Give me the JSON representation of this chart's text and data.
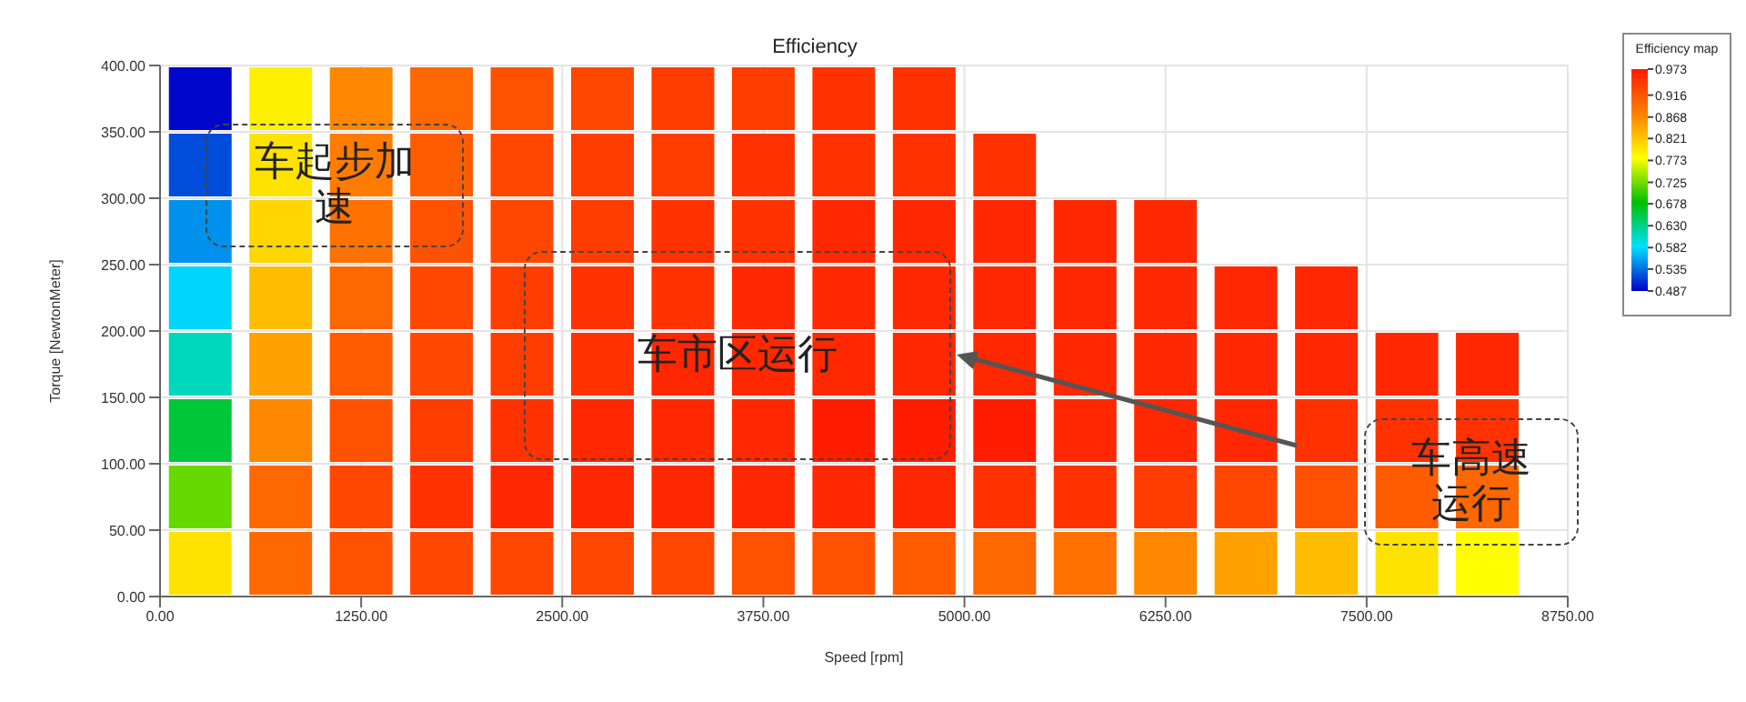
{
  "chart_data": {
    "type": "scatter",
    "title": "Efficiency",
    "xlabel": "Speed [rpm]",
    "ylabel": "Torque [NewtonMeter]",
    "clabel": "Efficiency map",
    "xlim": [
      0,
      8750
    ],
    "ylim": [
      0,
      400
    ],
    "xticks": [
      {
        "value": 0,
        "label": "0.00"
      },
      {
        "value": 1250,
        "label": "1250.00"
      },
      {
        "value": 2500,
        "label": "2500.00"
      },
      {
        "value": 3750,
        "label": "3750.00"
      },
      {
        "value": 5000,
        "label": "5000.00"
      },
      {
        "value": 6250,
        "label": "6250.00"
      },
      {
        "value": 7500,
        "label": "7500.00"
      },
      {
        "value": 8750,
        "label": "8750.00"
      }
    ],
    "yticks": [
      {
        "value": 0,
        "label": "0.00"
      },
      {
        "value": 50,
        "label": "50.00"
      },
      {
        "value": 100,
        "label": "100.00"
      },
      {
        "value": 150,
        "label": "150.00"
      },
      {
        "value": 200,
        "label": "200.00"
      },
      {
        "value": 250,
        "label": "250.00"
      },
      {
        "value": 300,
        "label": "300.00"
      },
      {
        "value": 350,
        "label": "350.00"
      },
      {
        "value": 400,
        "label": "400.00"
      }
    ],
    "clim": [
      0.487,
      0.973
    ],
    "cticks": [
      0.487,
      0.535,
      0.582,
      {
        "value": 0.63,
        "label": "0.630"
      },
      0.678,
      0.725,
      0.773,
      0.821,
      0.868,
      0.916,
      0.973
    ],
    "grid": true,
    "marker": "square",
    "x": [
      250,
      250,
      250,
      250,
      250,
      250,
      250,
      250,
      750,
      750,
      750,
      750,
      750,
      750,
      750,
      750,
      1250,
      1250,
      1250,
      1250,
      1250,
      1250,
      1250,
      1250,
      1750,
      1750,
      1750,
      1750,
      1750,
      1750,
      1750,
      1750,
      2250,
      2250,
      2250,
      2250,
      2250,
      2250,
      2250,
      2250,
      2750,
      2750,
      2750,
      2750,
      2750,
      2750,
      2750,
      2750,
      3250,
      3250,
      3250,
      3250,
      3250,
      3250,
      3250,
      3250,
      3750,
      3750,
      3750,
      3750,
      3750,
      3750,
      3750,
      3750,
      4250,
      4250,
      4250,
      4250,
      4250,
      4250,
      4250,
      4250,
      4750,
      4750,
      4750,
      4750,
      4750,
      4750,
      4750,
      4750,
      5250,
      5250,
      5250,
      5250,
      5250,
      5250,
      5250,
      5750,
      5750,
      5750,
      5750,
      5750,
      5750,
      6250,
      6250,
      6250,
      6250,
      6250,
      6250,
      6750,
      6750,
      6750,
      6750,
      6750,
      7250,
      7250,
      7250,
      7250,
      7250,
      7750,
      7750,
      7750,
      7750,
      8250,
      8250,
      8250,
      8250
    ],
    "values": [
      25,
      75,
      125,
      175,
      225,
      275,
      325,
      375,
      25,
      75,
      125,
      175,
      225,
      275,
      325,
      375,
      25,
      75,
      125,
      175,
      225,
      275,
      325,
      375,
      25,
      75,
      125,
      175,
      225,
      275,
      325,
      375,
      25,
      75,
      125,
      175,
      225,
      275,
      325,
      375,
      25,
      75,
      125,
      175,
      225,
      275,
      325,
      375,
      25,
      75,
      125,
      175,
      225,
      275,
      325,
      375,
      25,
      75,
      125,
      175,
      225,
      275,
      325,
      375,
      25,
      75,
      125,
      175,
      225,
      275,
      325,
      375,
      25,
      75,
      125,
      175,
      225,
      275,
      325,
      375,
      25,
      75,
      125,
      175,
      225,
      275,
      325,
      25,
      75,
      125,
      175,
      225,
      275,
      25,
      75,
      125,
      175,
      225,
      275,
      25,
      75,
      125,
      175,
      225,
      25,
      75,
      125,
      175,
      225,
      25,
      75,
      125,
      175,
      25,
      75,
      125,
      175
    ],
    "cvalues": [
      0.8,
      0.72,
      0.66,
      0.61,
      0.58,
      0.55,
      0.52,
      0.49,
      0.9,
      0.9,
      0.87,
      0.85,
      0.83,
      0.81,
      0.8,
      0.79,
      0.92,
      0.93,
      0.92,
      0.91,
      0.9,
      0.89,
      0.88,
      0.87,
      0.93,
      0.95,
      0.94,
      0.93,
      0.93,
      0.92,
      0.91,
      0.9,
      0.93,
      0.96,
      0.95,
      0.94,
      0.94,
      0.93,
      0.93,
      0.92,
      0.93,
      0.96,
      0.96,
      0.95,
      0.95,
      0.94,
      0.94,
      0.93,
      0.93,
      0.96,
      0.96,
      0.96,
      0.95,
      0.95,
      0.94,
      0.94,
      0.92,
      0.96,
      0.96,
      0.96,
      0.96,
      0.95,
      0.95,
      0.94,
      0.92,
      0.96,
      0.97,
      0.96,
      0.96,
      0.96,
      0.95,
      0.95,
      0.91,
      0.96,
      0.97,
      0.96,
      0.96,
      0.96,
      0.95,
      0.95,
      0.9,
      0.95,
      0.97,
      0.96,
      0.96,
      0.96,
      0.95,
      0.89,
      0.95,
      0.96,
      0.96,
      0.96,
      0.96,
      0.87,
      0.94,
      0.96,
      0.96,
      0.96,
      0.96,
      0.85,
      0.93,
      0.96,
      0.96,
      0.96,
      0.83,
      0.92,
      0.95,
      0.96,
      0.96,
      0.8,
      0.91,
      0.95,
      0.96,
      0.78,
      0.9,
      0.95,
      0.96
    ],
    "annotations": [
      "车起步加速",
      "车市区运行",
      "车高速运行"
    ]
  }
}
